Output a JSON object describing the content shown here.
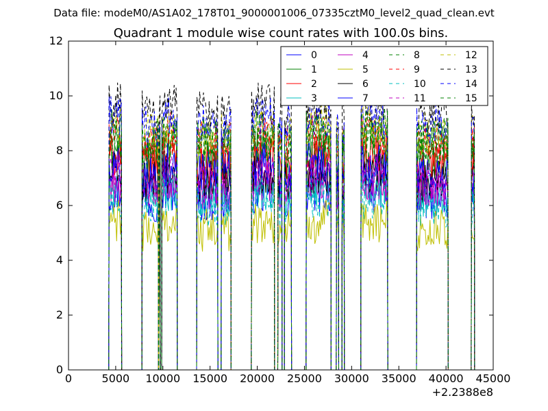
{
  "suptitle": "Data file: modeM0/AS1A02_178T01_9000001006_07335cztM0_level2_quad_clean.evt",
  "chart_data": {
    "type": "line",
    "title": "Quadrant 1 module wise count rates with 100.0s bins.",
    "xlabel": "",
    "ylabel": "",
    "x_offset_label": "+2.2388e8",
    "xlim": [
      0,
      45000
    ],
    "ylim": [
      0,
      12
    ],
    "xticks": [
      0,
      5000,
      10000,
      15000,
      20000,
      25000,
      30000,
      35000,
      40000,
      45000
    ],
    "xtick_labels": [
      "0",
      "5000",
      "10000",
      "15000",
      "20000",
      "25000",
      "30000",
      "35000",
      "40000",
      "45000"
    ],
    "yticks": [
      0,
      2,
      4,
      6,
      8,
      10,
      12
    ],
    "ytick_labels": [
      "0",
      "2",
      "4",
      "6",
      "8",
      "10",
      "12"
    ],
    "grid": false,
    "legend": {
      "placement": "top-right",
      "columns": 4
    },
    "bin_seconds": 100,
    "active_segments": [
      [
        4300,
        5600
      ],
      [
        7800,
        9500
      ],
      [
        9600,
        9700
      ],
      [
        9900,
        11500
      ],
      [
        13600,
        15800
      ],
      [
        16200,
        17200
      ],
      [
        19400,
        21800
      ],
      [
        22200,
        22600
      ],
      [
        22900,
        23600
      ],
      [
        25200,
        27800
      ],
      [
        28400,
        28600
      ],
      [
        29000,
        29200
      ],
      [
        31000,
        33800
      ],
      [
        36900,
        40200
      ],
      [
        42700,
        43000
      ]
    ],
    "series": [
      {
        "name": "0",
        "color": "#0000ff",
        "dash": "solid",
        "mean": 6.2
      },
      {
        "name": "1",
        "color": "#008000",
        "dash": "solid",
        "mean": 7.7
      },
      {
        "name": "2",
        "color": "#ff0000",
        "dash": "solid",
        "mean": 7.5
      },
      {
        "name": "3",
        "color": "#00bfbf",
        "dash": "solid",
        "mean": 6.3
      },
      {
        "name": "4",
        "color": "#bf00bf",
        "dash": "solid",
        "mean": 6.6
      },
      {
        "name": "5",
        "color": "#bfbf00",
        "dash": "solid",
        "mean": 5.1
      },
      {
        "name": "6",
        "color": "#000000",
        "dash": "solid",
        "mean": 6.9
      },
      {
        "name": "7",
        "color": "#0000ff",
        "dash": "solid",
        "mean": 7.2
      },
      {
        "name": "8",
        "color": "#008000",
        "dash": "dashed",
        "mean": 8.1
      },
      {
        "name": "9",
        "color": "#ff0000",
        "dash": "dashed",
        "mean": 8.3
      },
      {
        "name": "10",
        "color": "#00bfbf",
        "dash": "dashed",
        "mean": 6.0
      },
      {
        "name": "11",
        "color": "#bf00bf",
        "dash": "dashed",
        "mean": 6.8
      },
      {
        "name": "12",
        "color": "#bfbf00",
        "dash": "dashed",
        "mean": 8.6
      },
      {
        "name": "13",
        "color": "#000000",
        "dash": "dashed",
        "mean": 9.4
      },
      {
        "name": "14",
        "color": "#0000ff",
        "dash": "dashed",
        "mean": 8.9
      },
      {
        "name": "15",
        "color": "#008000",
        "dash": "dashed",
        "mean": 8.4
      }
    ]
  }
}
